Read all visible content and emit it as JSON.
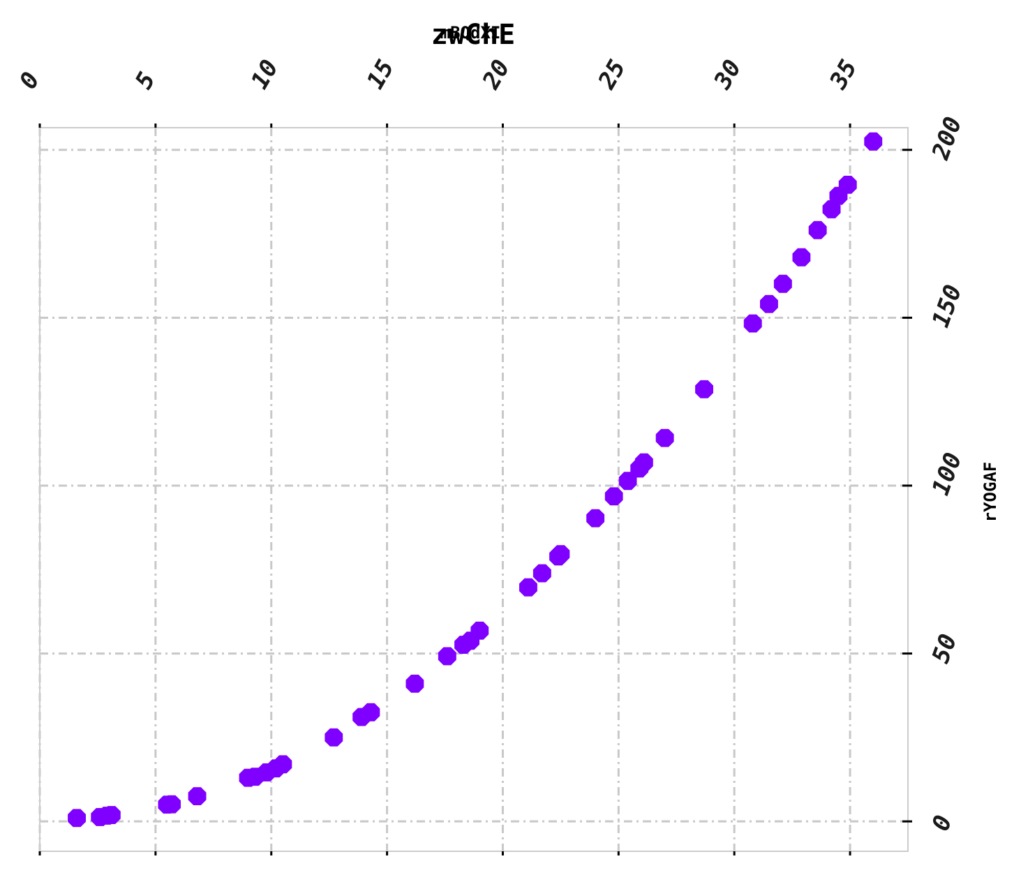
{
  "chart_data": {
    "type": "scatter",
    "title": "zwChE",
    "xlabel": "mBQdXI",
    "ylabel": "rYOGAF",
    "xlim": [
      0,
      37.5
    ],
    "ylim": [
      -8.9,
      206.6
    ],
    "x_ticks": [
      "0",
      "5",
      "10",
      "15",
      "20",
      "25",
      "30",
      "35"
    ],
    "y_ticks": [
      "0",
      "50",
      "100",
      "150",
      "200"
    ],
    "x_axis_position": "top",
    "y_axis_position": "right",
    "grid": true,
    "marker_color": "#7F00FF",
    "marker_shape": "octagon",
    "x": [
      1.6,
      2.6,
      2.9,
      3.1,
      5.5,
      5.7,
      6.8,
      9.0,
      9.3,
      9.8,
      10.2,
      10.5,
      12.7,
      13.9,
      14.3,
      16.2,
      17.6,
      18.3,
      18.6,
      19.0,
      21.1,
      21.7,
      22.4,
      22.5,
      24.0,
      24.8,
      25.4,
      25.9,
      26.1,
      27.0,
      28.7,
      30.8,
      31.5,
      32.1,
      32.9,
      33.6,
      34.2,
      34.5,
      34.9,
      36.0
    ],
    "y": [
      1.0,
      1.3,
      1.7,
      1.9,
      5.0,
      5.1,
      7.5,
      13.0,
      13.3,
      14.6,
      15.8,
      17.0,
      25.0,
      31.1,
      32.5,
      41.0,
      49.2,
      52.6,
      53.8,
      56.8,
      69.7,
      73.9,
      78.9,
      79.6,
      90.3,
      96.8,
      101.4,
      105.1,
      106.9,
      114.2,
      128.7,
      148.3,
      154.1,
      160.1,
      168.0,
      176.1,
      182.3,
      186.3,
      189.6,
      202.5
    ]
  }
}
